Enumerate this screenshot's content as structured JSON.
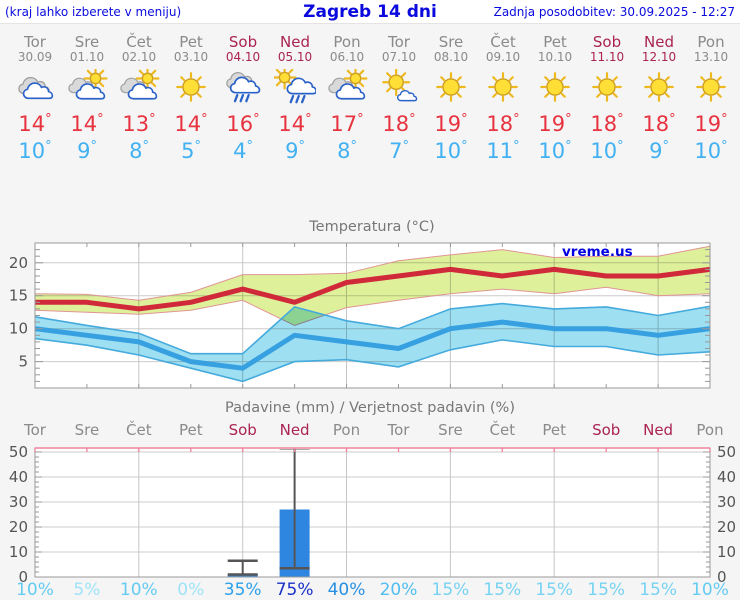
{
  "header": {
    "left_note": "(kraj lahko izberete v meniju)",
    "title": "Zagreb 14 dni",
    "updated": "Zadnja posodobitev: 30.09.2025 - 12:27"
  },
  "colors": {
    "header_text": "#0a0ade",
    "weekday_label": "#8a8a8a",
    "weekend_label": "#aa2353",
    "high_temp": "#e7333f",
    "low_temp": "#41b1f1",
    "background": "#f5f5f5",
    "plot_background": "#ffffff"
  },
  "days": [
    {
      "name": "Tor",
      "date": "30.09",
      "weekend": false,
      "icon": "cloudy",
      "high": "14",
      "low": "10"
    },
    {
      "name": "Sre",
      "date": "01.10",
      "weekend": false,
      "icon": "partly-cloudy",
      "high": "14",
      "low": "9"
    },
    {
      "name": "Čet",
      "date": "02.10",
      "weekend": false,
      "icon": "partly-cloudy",
      "high": "13",
      "low": "8"
    },
    {
      "name": "Pet",
      "date": "03.10",
      "weekend": false,
      "icon": "sunny",
      "high": "14",
      "low": "5"
    },
    {
      "name": "Sob",
      "date": "04.10",
      "weekend": true,
      "icon": "rain",
      "high": "16",
      "low": "4"
    },
    {
      "name": "Ned",
      "date": "05.10",
      "weekend": true,
      "icon": "sun-rain",
      "high": "14",
      "low": "9"
    },
    {
      "name": "Pon",
      "date": "06.10",
      "weekend": false,
      "icon": "partly-cloudy",
      "high": "17",
      "low": "8"
    },
    {
      "name": "Tor",
      "date": "07.10",
      "weekend": false,
      "icon": "mostly-sunny",
      "high": "18",
      "low": "7"
    },
    {
      "name": "Sre",
      "date": "08.10",
      "weekend": false,
      "icon": "sunny",
      "high": "19",
      "low": "10"
    },
    {
      "name": "Čet",
      "date": "09.10",
      "weekend": false,
      "icon": "sunny",
      "high": "18",
      "low": "11"
    },
    {
      "name": "Pet",
      "date": "10.10",
      "weekend": false,
      "icon": "sunny",
      "high": "19",
      "low": "10"
    },
    {
      "name": "Sob",
      "date": "11.10",
      "weekend": true,
      "icon": "sunny",
      "high": "18",
      "low": "10"
    },
    {
      "name": "Ned",
      "date": "12.10",
      "weekend": true,
      "icon": "sunny",
      "high": "18",
      "low": "9"
    },
    {
      "name": "Pon",
      "date": "13.10",
      "weekend": false,
      "icon": "sunny",
      "high": "19",
      "low": "10"
    }
  ],
  "chart_data": [
    {
      "type": "line",
      "title": "Temperatura (°C)",
      "watermark": "vreme.us",
      "x_labels": [
        "Tor",
        "Sre",
        "Čet",
        "Pet",
        "Sob",
        "Ned",
        "Pon",
        "Tor",
        "Sre",
        "Čet",
        "Pet",
        "Sob",
        "Ned",
        "Pon"
      ],
      "ylim": [
        1,
        23
      ],
      "yticks": [
        5,
        10,
        15,
        20
      ],
      "grid_x_indices": [
        2,
        4,
        6,
        8,
        10,
        12
      ],
      "legend": "none",
      "series": [
        {
          "name": "max temperature",
          "color": "#d02a3a",
          "values": [
            14,
            14,
            13,
            14,
            16,
            14,
            17,
            18,
            19,
            18,
            19,
            18,
            18,
            19
          ]
        },
        {
          "name": "max range upper",
          "color": "#dff09b",
          "values": [
            15.3,
            15.2,
            14.3,
            15.5,
            18.2,
            18.2,
            18.4,
            20.3,
            21.2,
            22,
            20.8,
            21,
            21,
            22.5
          ]
        },
        {
          "name": "max range lower",
          "color": "#dff09b",
          "values": [
            12.8,
            12.5,
            12.2,
            12.8,
            14.3,
            10.5,
            13.2,
            14.3,
            15.3,
            16,
            15.3,
            16.3,
            15,
            15.3
          ]
        },
        {
          "name": "min temperature",
          "color": "#36a0e0",
          "values": [
            10,
            9,
            8,
            5,
            4,
            9,
            8,
            7,
            10,
            11,
            10,
            10,
            9,
            10
          ]
        },
        {
          "name": "min range upper",
          "color": "#9fdff2",
          "values": [
            11.8,
            10.5,
            9.3,
            6.2,
            6.2,
            13.3,
            11.2,
            10,
            13,
            13.8,
            13,
            13.3,
            12,
            13.4
          ]
        },
        {
          "name": "min range lower",
          "color": "#9fdff2",
          "values": [
            8.5,
            7.5,
            6,
            4,
            2,
            5,
            5.3,
            4.2,
            6.8,
            8.3,
            7.3,
            7.3,
            6,
            6.5
          ]
        }
      ],
      "band_edge_colors": {
        "max": "#e09595",
        "min": "#45aadc"
      }
    },
    {
      "type": "bar",
      "title": "Padavine (mm) / Verjetnost padavin (%)",
      "categories": [
        "Tor",
        "Sre",
        "Čet",
        "Pet",
        "Sob",
        "Ned",
        "Pon",
        "Tor",
        "Sre",
        "Čet",
        "Pet",
        "Sob",
        "Ned",
        "Pon"
      ],
      "weekend_flags": [
        false,
        false,
        false,
        false,
        true,
        true,
        false,
        false,
        false,
        false,
        false,
        true,
        true,
        false
      ],
      "values": [
        0,
        0,
        0,
        0,
        1,
        27,
        0,
        0,
        0,
        0,
        0,
        0,
        0,
        0
      ],
      "whiskers": [
        null,
        null,
        null,
        null,
        {
          "low": 1,
          "high": 6.5
        },
        {
          "low": 3.5,
          "high": 51.5
        },
        null,
        null,
        null,
        null,
        null,
        null,
        null,
        null
      ],
      "probabilities": [
        {
          "label": "10%",
          "color": "#64cbf1"
        },
        {
          "label": "5%",
          "color": "#9fe3f8"
        },
        {
          "label": "10%",
          "color": "#64cbf1"
        },
        {
          "label": "0%",
          "color": "#9fe3f8"
        },
        {
          "label": "35%",
          "color": "#2d9fe8"
        },
        {
          "label": "75%",
          "color": "#1a31c8"
        },
        {
          "label": "40%",
          "color": "#2890e2"
        },
        {
          "label": "20%",
          "color": "#50beee"
        },
        {
          "label": "15%",
          "color": "#76d3f2"
        },
        {
          "label": "15%",
          "color": "#76d3f2"
        },
        {
          "label": "15%",
          "color": "#76d3f2"
        },
        {
          "label": "15%",
          "color": "#76d3f2"
        },
        {
          "label": "15%",
          "color": "#76d3f2"
        },
        {
          "label": "10%",
          "color": "#64cbf1"
        }
      ],
      "ylim": [
        0,
        51.6
      ],
      "yticks": [
        0,
        10,
        20,
        30,
        40,
        50
      ],
      "grid_x_indices": [
        2,
        4,
        6,
        8,
        10,
        12
      ],
      "bar_color": "#2e86e0",
      "whisker_color": "#555555",
      "top_axis_color": "#f2a0b4"
    }
  ]
}
